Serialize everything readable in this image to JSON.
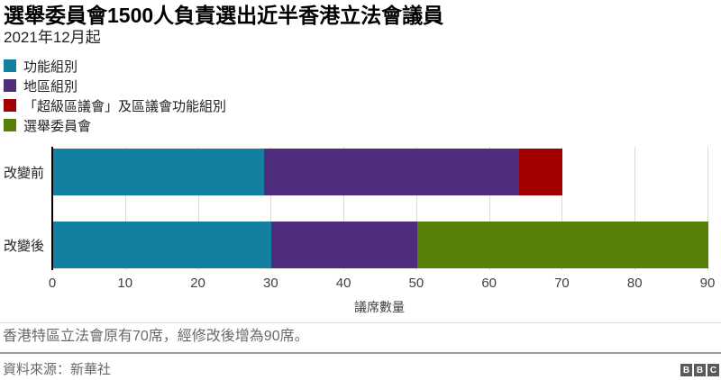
{
  "header": {
    "title": "選舉委員會1500人負責選出近半香港立法會議員",
    "subtitle": "2021年12月起"
  },
  "colors": {
    "functional": "#1380A1",
    "geographical": "#4E2D7E",
    "super_district": "#A10000",
    "election_committee": "#568106",
    "axis_text": "#404040",
    "footer_text": "#696969"
  },
  "chart_data": {
    "type": "bar",
    "orientation": "horizontal",
    "stacked": true,
    "categories": [
      "改變前",
      "改變後"
    ],
    "series": [
      {
        "name": "功能組別",
        "color": "#1380A1",
        "values": [
          29,
          30
        ]
      },
      {
        "name": "地區組別",
        "color": "#4E2D7E",
        "values": [
          35,
          20
        ]
      },
      {
        "name": "「超級區議會」及區議會功能組別",
        "color": "#A10000",
        "values": [
          6,
          0
        ]
      },
      {
        "name": "選舉委員會",
        "color": "#568106",
        "values": [
          0,
          40
        ]
      }
    ],
    "totals": {
      "改變前": 70,
      "改變後": 90
    },
    "xlabel": "議席數量",
    "x_ticks": [
      0,
      10,
      20,
      30,
      40,
      50,
      60,
      70,
      80,
      90
    ],
    "xlim": [
      0,
      90
    ],
    "grid": "vertical",
    "legend_position": "top-left"
  },
  "footer": {
    "note": "香港特區立法會原有70席，經修改後增為90席。",
    "source": "資料來源：新華社",
    "logo_letters": [
      "B",
      "B",
      "C"
    ]
  }
}
